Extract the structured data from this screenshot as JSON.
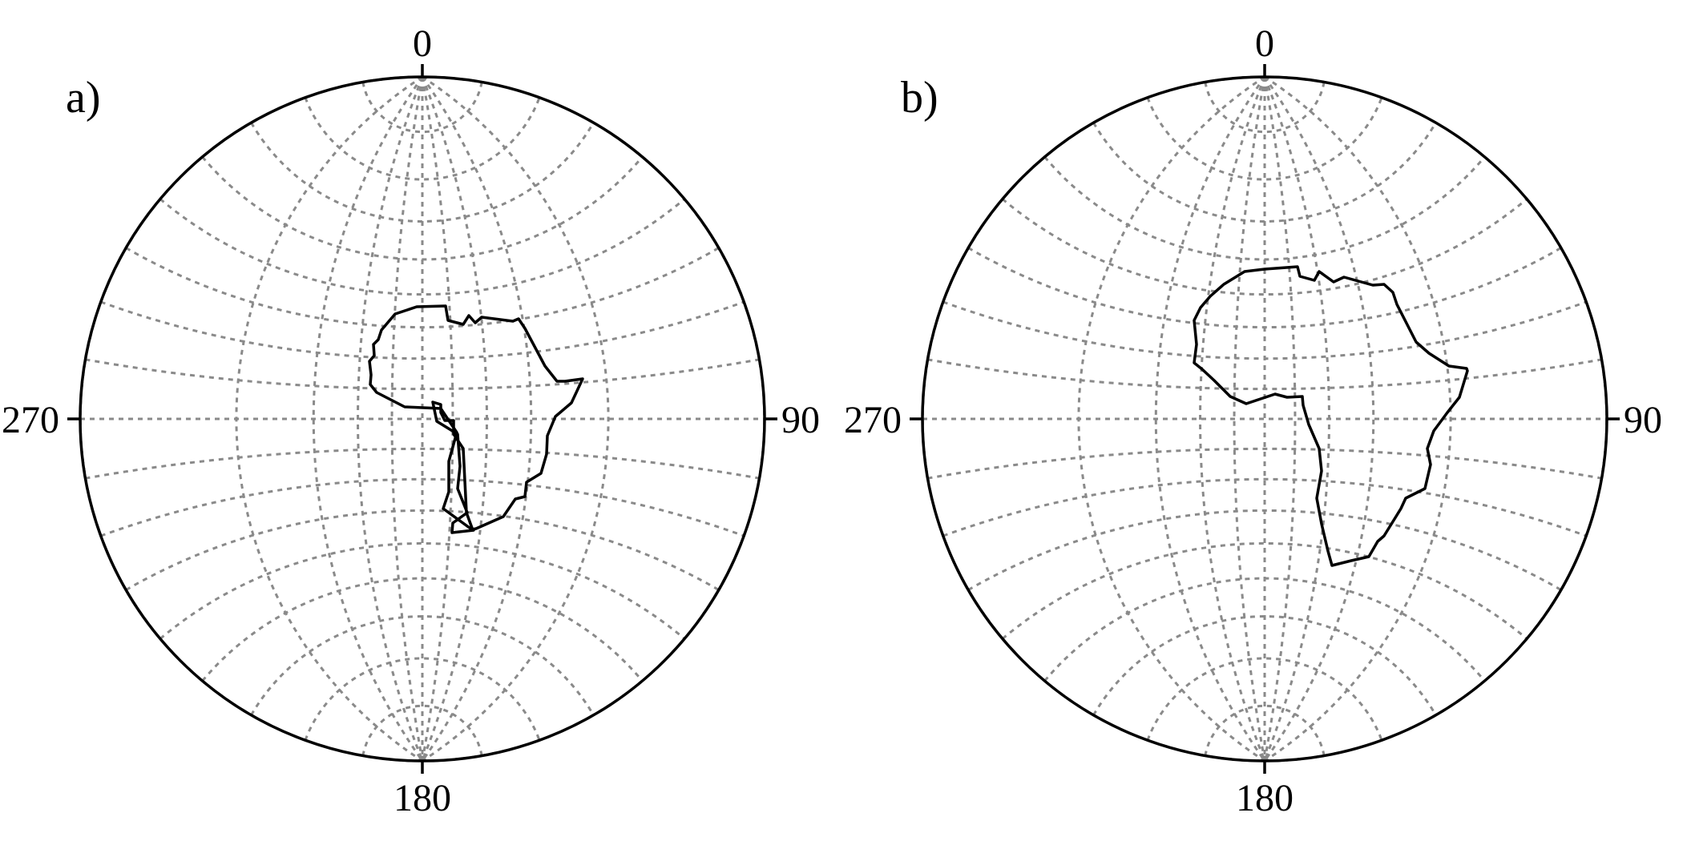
{
  "panels": [
    {
      "label": "a)",
      "directions": {
        "top": "0",
        "right": "90",
        "bottom": "180",
        "left": "270"
      },
      "outline_icon": "africa-continent-outline"
    },
    {
      "label": "b)",
      "directions": {
        "top": "0",
        "right": "90",
        "bottom": "180",
        "left": "270"
      },
      "outline_icon": "africa-continent-outline"
    }
  ],
  "colors": {
    "grid": "#8a8a8a",
    "outline": "#000000",
    "background": "#ffffff"
  }
}
